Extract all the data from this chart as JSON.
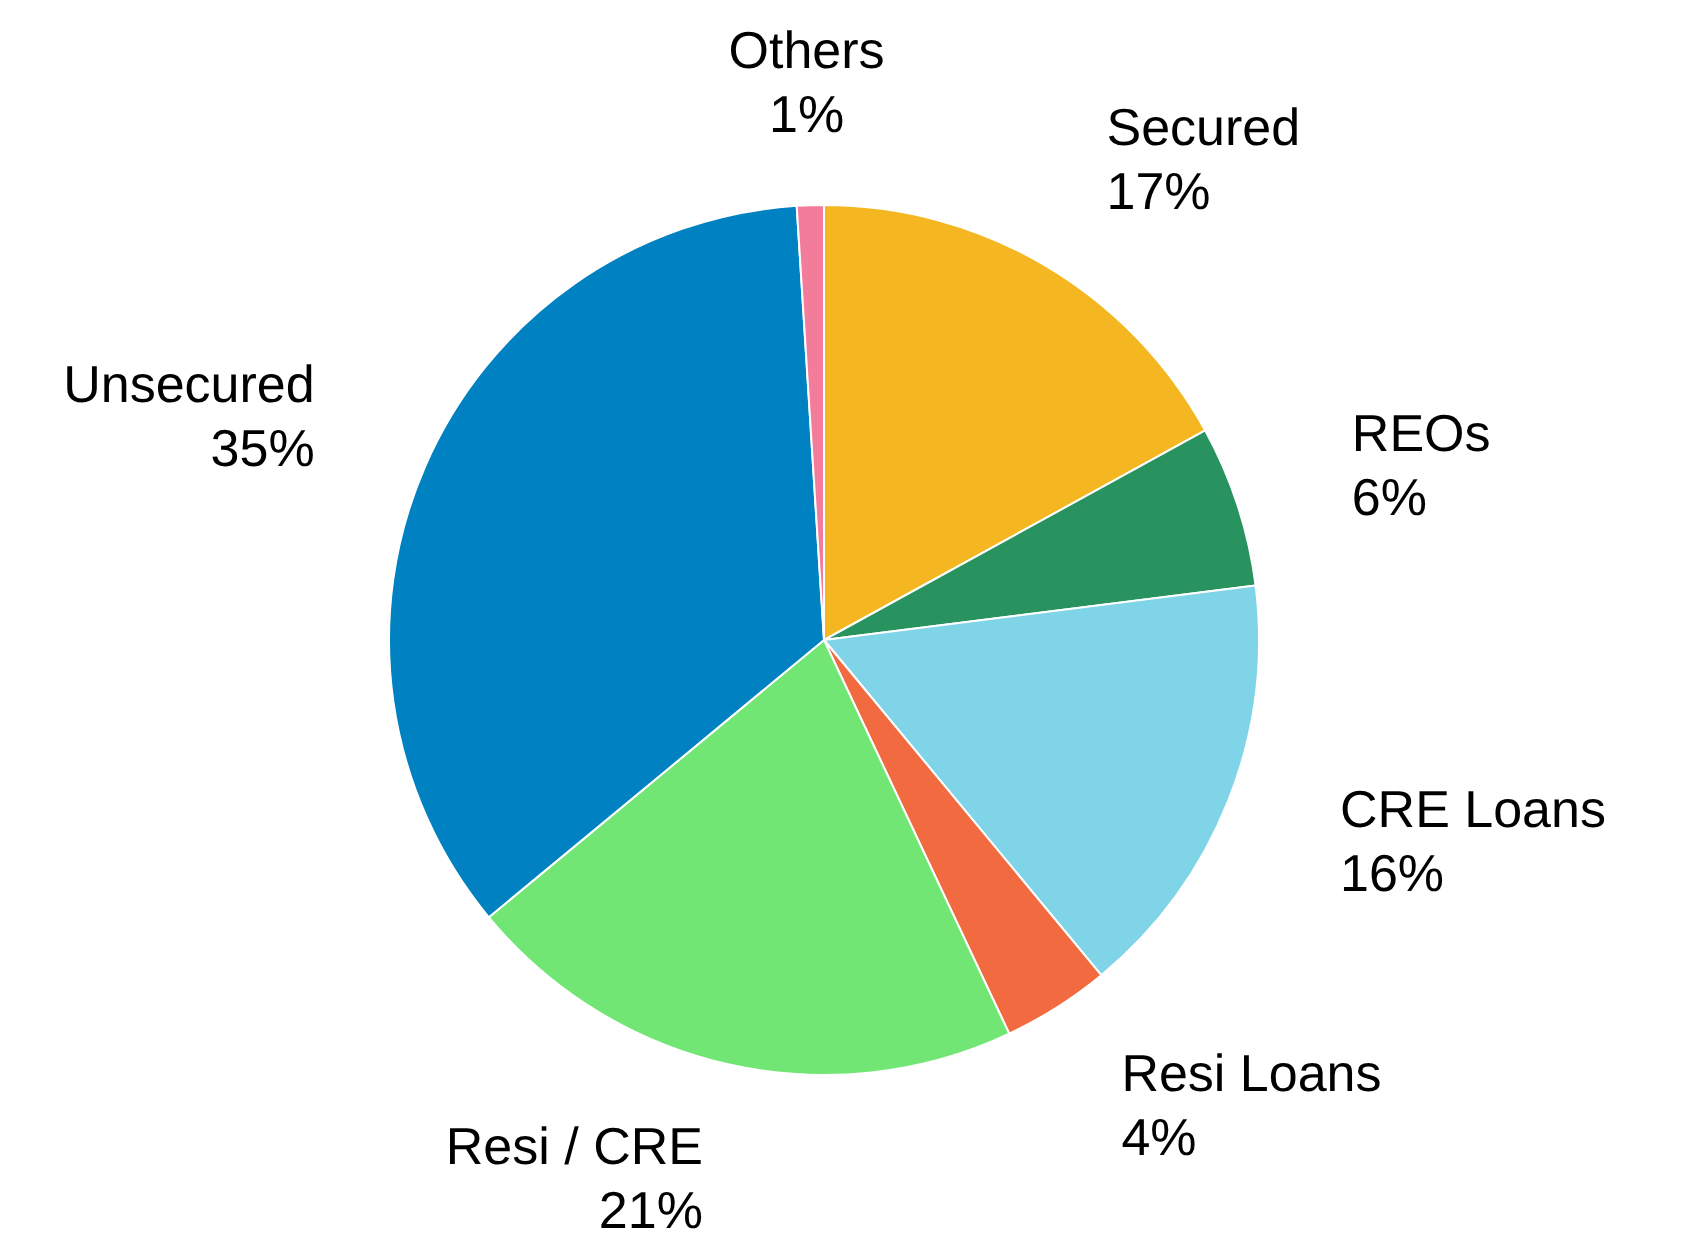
{
  "chart_data": {
    "type": "pie",
    "categories": [
      "Secured",
      "REOs",
      "CRE Loans",
      "Resi Loans",
      "Resi / CRE",
      "Unsecured",
      "Others"
    ],
    "values": [
      17,
      6,
      16,
      4,
      21,
      35,
      1
    ],
    "value_labels": [
      "17%",
      "6%",
      "16%",
      "4%",
      "21%",
      "35%",
      "1%"
    ],
    "colors": [
      "#f4b722",
      "#299360",
      "#7fd4e8",
      "#f26a3f",
      "#72e674",
      "#0081c2",
      "#f37c9b"
    ],
    "legend": false
  }
}
